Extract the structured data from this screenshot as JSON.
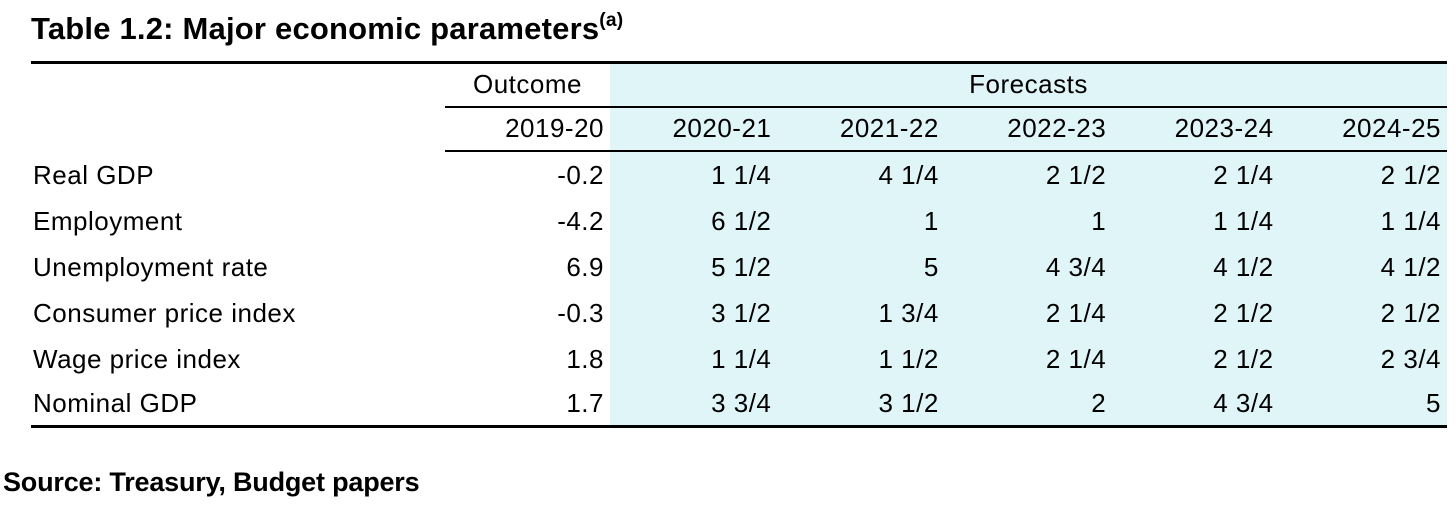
{
  "title": {
    "text": "Table 1.2: Major economic parameters",
    "superscript": "(a)"
  },
  "table": {
    "header": {
      "outcome_label": "Outcome",
      "forecasts_label": "Forecasts",
      "outcome_year": "2019-20",
      "forecast_years": [
        "2020-21",
        "2021-22",
        "2022-23",
        "2023-24",
        "2024-25"
      ]
    },
    "rows": [
      {
        "label": "Real GDP",
        "outcome": "-0.2",
        "forecasts": [
          "1 1/4",
          "4 1/4",
          "2 1/2",
          "2 1/4",
          "2 1/2"
        ]
      },
      {
        "label": "Employment",
        "outcome": "-4.2",
        "forecasts": [
          "6 1/2",
          "1",
          "1",
          "1 1/4",
          "1 1/4"
        ]
      },
      {
        "label": "Unemployment rate",
        "outcome": "6.9",
        "forecasts": [
          "5 1/2",
          "5",
          "4 3/4",
          "4 1/2",
          "4 1/2"
        ]
      },
      {
        "label": "Consumer price index",
        "outcome": "-0.3",
        "forecasts": [
          "3 1/2",
          "1 3/4",
          "2 1/4",
          "2 1/2",
          "2 1/2"
        ]
      },
      {
        "label": "Wage price index",
        "outcome": "1.8",
        "forecasts": [
          "1 1/4",
          "1 1/2",
          "2 1/4",
          "2 1/2",
          "2 3/4"
        ]
      },
      {
        "label": "Nominal GDP",
        "outcome": "1.7",
        "forecasts": [
          "3 3/4",
          "3 1/2",
          "2",
          "4 3/4",
          "5"
        ]
      }
    ]
  },
  "source": "Source: Treasury, Budget papers",
  "colors": {
    "forecast_band": "#e0f5f8",
    "rule": "#000000",
    "text": "#000000",
    "background": "#ffffff"
  }
}
